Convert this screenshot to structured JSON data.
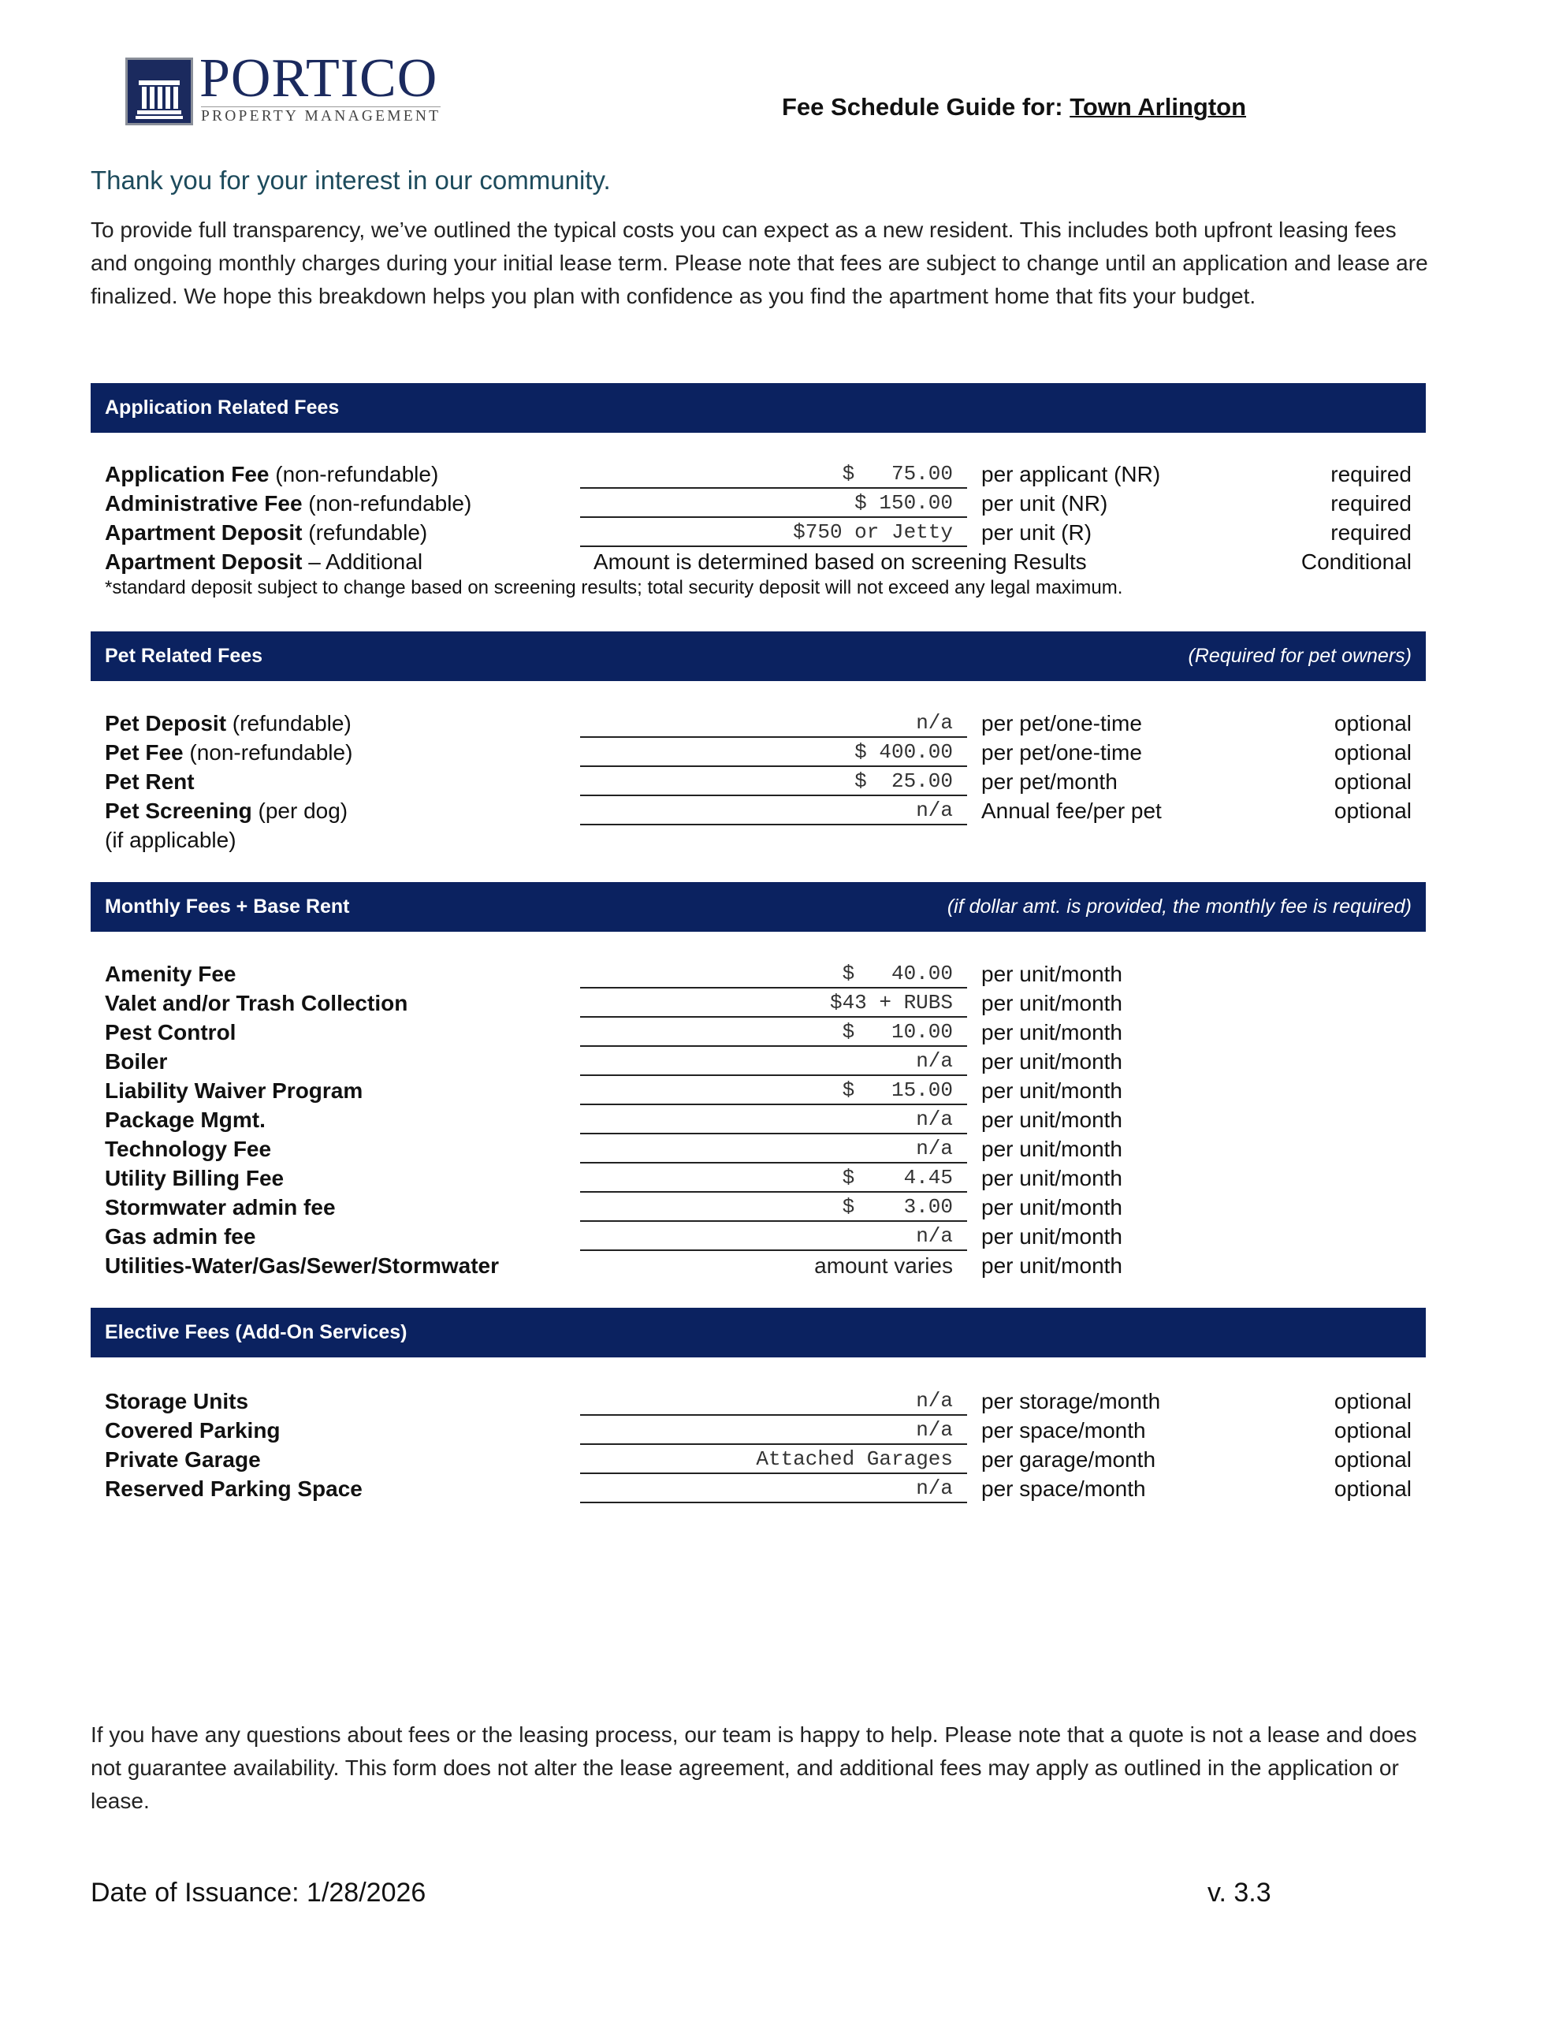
{
  "logo": {
    "name": "PORTICO",
    "tagline": "PROPERTY MANAGEMENT"
  },
  "header": {
    "guide_label": "Fee Schedule Guide for:",
    "community": "Town Arlington"
  },
  "intro": {
    "heading": "Thank you for your interest in our community.",
    "body": "To provide full transparency, we’ve outlined the typical costs you can expect as a new resident. This includes both upfront leasing fees and ongoing monthly charges during your initial lease term. Please note that fees are subject to change until an application and lease are finalized. We hope this breakdown helps you plan with confidence as you find the apartment home that fits your budget."
  },
  "colors": {
    "bar": "#0b2260",
    "heading": "#1d4b5c"
  },
  "application": {
    "title": "Application Related Fees",
    "rows": [
      {
        "label": "Application Fee",
        "qualifier": " (non-refundable)",
        "value": "$   75.00",
        "unit": "per applicant (NR)",
        "status": "required"
      },
      {
        "label": "Administrative Fee",
        "qualifier": " (non-refundable)",
        "value": "$ 150.00",
        "unit": "per unit (NR)",
        "status": "required"
      },
      {
        "label": "Apartment Deposit",
        "qualifier": " (refundable)",
        "value": "$750 or Jetty",
        "unit": "per unit (R)",
        "status": "required"
      },
      {
        "label": "Apartment Deposit",
        "qualifier": " – Additional",
        "note": "Amount is determined based on screening Results",
        "status": "Conditional"
      }
    ],
    "footnote": "*standard deposit subject to change based on screening results; total security deposit will not exceed any legal maximum."
  },
  "pet": {
    "title": "Pet Related Fees",
    "note": "(Required for pet owners)",
    "rows": [
      {
        "label": "Pet Deposit",
        "qualifier": " (refundable)",
        "value": "n/a",
        "unit": "per pet/one-time",
        "status": "optional"
      },
      {
        "label": "Pet Fee",
        "qualifier": " (non-refundable)",
        "value": "$ 400.00",
        "unit": "per pet/one-time",
        "status": "optional"
      },
      {
        "label": "Pet Rent",
        "qualifier": "",
        "value": "$  25.00",
        "unit": "per pet/month",
        "status": "optional"
      },
      {
        "label": "Pet Screening",
        "qualifier": " (per dog)",
        "value": "n/a",
        "unit": "Annual fee/per pet",
        "status": "optional"
      }
    ],
    "extra": "(if applicable)"
  },
  "monthly": {
    "title": "Monthly Fees + Base Rent",
    "note": "(if dollar amt. is provided, the monthly fee is required)",
    "rows": [
      {
        "label": "Amenity Fee",
        "value": "$   40.00",
        "unit": "per unit/month"
      },
      {
        "label": "Valet and/or Trash Collection",
        "value": "$43 + RUBS",
        "unit": "per unit/month"
      },
      {
        "label": "Pest Control",
        "value": "$   10.00",
        "unit": "per unit/month"
      },
      {
        "label": "Boiler",
        "value": "n/a",
        "unit": "per unit/month"
      },
      {
        "label": "Liability Waiver Program",
        "value": "$   15.00",
        "unit": "per unit/month"
      },
      {
        "label": "Package Mgmt.",
        "value": "n/a",
        "unit": "per unit/month"
      },
      {
        "label": "Technology Fee",
        "value": "n/a",
        "unit": "per unit/month"
      },
      {
        "label": "Utility Billing Fee",
        "value": "$    4.45",
        "unit": "per unit/month"
      },
      {
        "label": "Stormwater admin fee",
        "value": "$    3.00",
        "unit": "per unit/month"
      },
      {
        "label": "Gas admin fee",
        "value": "n/a",
        "unit": "per unit/month"
      },
      {
        "label": "Utilities-Water/Gas/Sewer/Stormwater",
        "value": "amount varies",
        "unit": "per unit/month"
      }
    ]
  },
  "elective": {
    "title": "Elective Fees (Add-On Services)",
    "rows": [
      {
        "label": "Storage Units",
        "value": "n/a",
        "unit": "per storage/month",
        "status": "optional"
      },
      {
        "label": "Covered Parking",
        "value": "n/a",
        "unit": "per space/month",
        "status": "optional"
      },
      {
        "label": "Private Garage",
        "value": "Attached Garages",
        "unit": "per garage/month",
        "status": "optional"
      },
      {
        "label": "Reserved Parking Space",
        "value": "n/a",
        "unit": "per space/month",
        "status": "optional"
      }
    ]
  },
  "outro": "If you have any questions about fees or the leasing process, our team is happy to help. Please note that a quote is not a lease and does not guarantee availability. This form does not alter the lease agreement, and additional fees may apply as outlined in the application or lease.",
  "footer": {
    "issued": "Date of Issuance:  1/28/2026",
    "version": "v. 3.3"
  }
}
